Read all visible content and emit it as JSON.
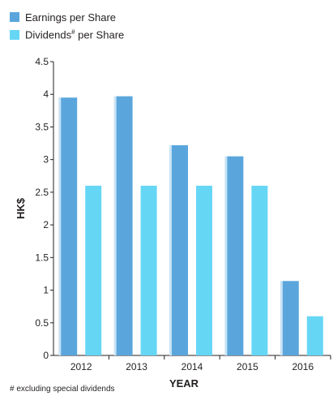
{
  "legend": {
    "earnings_label": "Earnings per Share",
    "dividends_label_main": "Dividends",
    "dividends_label_sup": "#",
    "dividends_label_rest": " per Share"
  },
  "footnote": "# excluding special dividends",
  "chart_data": {
    "type": "bar",
    "categories": [
      "2012",
      "2013",
      "2014",
      "2015",
      "2016"
    ],
    "series": [
      {
        "name": "Earnings per Share",
        "values": [
          3.95,
          3.97,
          3.22,
          3.05,
          1.14
        ],
        "color": "#5aa6dc"
      },
      {
        "name": "Dividends# per Share",
        "values": [
          2.6,
          2.6,
          2.6,
          2.6,
          0.6
        ],
        "color": "#66d6f5"
      }
    ],
    "xlabel": "YEAR",
    "ylabel": "HK$",
    "ylim": [
      0,
      4.5
    ],
    "yticks": [
      "0",
      "0.5",
      "1",
      "1.5",
      "2",
      "2.5",
      "3",
      "3.5",
      "4",
      "4.5"
    ],
    "grid": false,
    "legend_position": "top-left"
  }
}
